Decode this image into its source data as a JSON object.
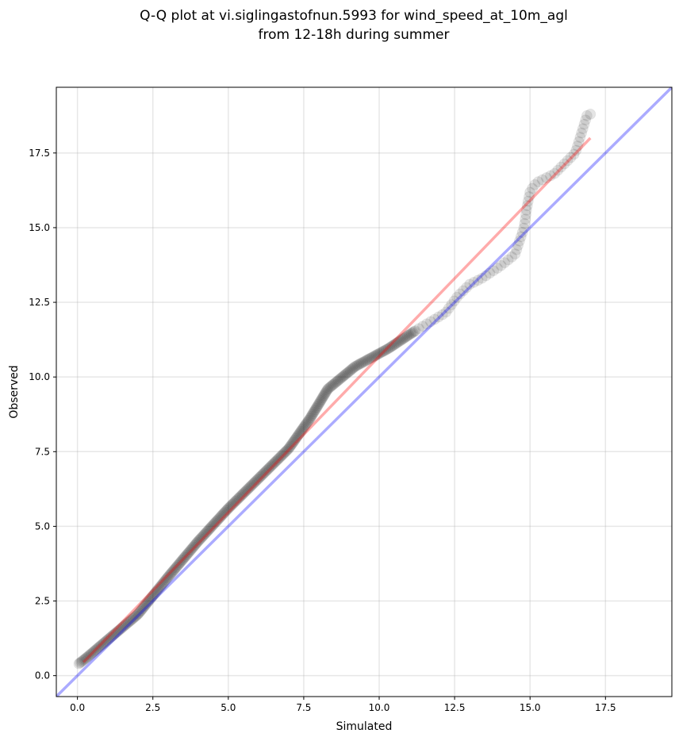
{
  "chart_data": {
    "type": "scatter",
    "title_line1": "Q-Q plot at vi.siglingastofnun.5993 for wind_speed_at_10m_agl",
    "title_line2": "from 12-18h during summer",
    "xlabel": "Simulated",
    "ylabel": "Observed",
    "xlim": [
      -0.7,
      19.7
    ],
    "ylim": [
      -0.7,
      19.7
    ],
    "xticks": [
      0.0,
      2.5,
      5.0,
      7.5,
      10.0,
      12.5,
      15.0,
      17.5
    ],
    "yticks": [
      0.0,
      2.5,
      5.0,
      7.5,
      10.0,
      12.5,
      15.0,
      17.5
    ],
    "xtick_labels": [
      "0.0",
      "2.5",
      "5.0",
      "7.5",
      "10.0",
      "12.5",
      "15.0",
      "17.5"
    ],
    "ytick_labels": [
      "0.0",
      "2.5",
      "5.0",
      "7.5",
      "10.0",
      "12.5",
      "15.0",
      "17.5"
    ],
    "grid": true,
    "point_color": "#000000",
    "fit_line_color": "#ff0000",
    "identity_line_color": "#0000ff",
    "quantile_knots": [
      [
        0.05,
        0.4
      ],
      [
        0.3,
        0.6
      ],
      [
        1.0,
        1.2
      ],
      [
        2.0,
        2.05
      ],
      [
        3.0,
        3.3
      ],
      [
        4.0,
        4.5
      ],
      [
        5.0,
        5.6
      ],
      [
        6.0,
        6.6
      ],
      [
        7.0,
        7.6
      ],
      [
        7.7,
        8.6
      ],
      [
        8.3,
        9.6
      ],
      [
        9.2,
        10.35
      ],
      [
        10.3,
        10.95
      ],
      [
        11.2,
        11.55
      ],
      [
        12.2,
        12.15
      ],
      [
        12.6,
        12.7
      ],
      [
        13.0,
        13.1
      ],
      [
        13.4,
        13.3
      ],
      [
        14.0,
        13.7
      ],
      [
        14.5,
        14.1
      ],
      [
        14.8,
        15.0
      ],
      [
        14.9,
        15.7
      ],
      [
        15.0,
        16.2
      ],
      [
        15.2,
        16.5
      ],
      [
        15.8,
        16.8
      ],
      [
        16.1,
        17.1
      ],
      [
        16.5,
        17.5
      ],
      [
        16.9,
        18.8
      ],
      [
        17.0,
        18.8
      ]
    ],
    "n_points": 380,
    "fit_line": {
      "x": [
        0.2,
        17.0
      ],
      "y": [
        0.45,
        18.0
      ]
    },
    "identity_line": {
      "x": [
        -0.7,
        19.7
      ],
      "y": [
        -0.7,
        19.7
      ]
    }
  }
}
